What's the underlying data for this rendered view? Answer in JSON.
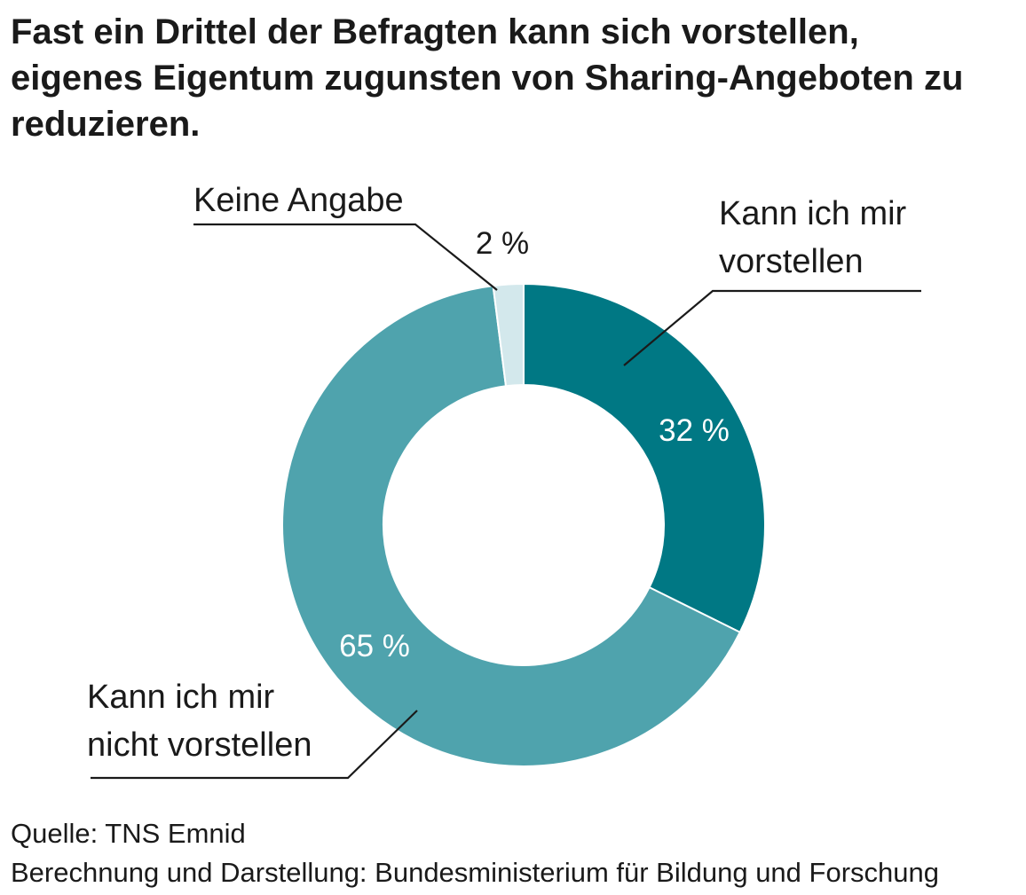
{
  "title_lines": [
    "Fast ein Drittel der Befragten kann sich vorstellen,",
    "eigenes Eigentum zugunsten von Sharing-Angeboten zu",
    "reduzieren."
  ],
  "chart_data": {
    "type": "pie",
    "variant": "donut",
    "title": "Fast ein Drittel der Befragten kann sich vorstellen, eigenes Eigentum zugunsten von Sharing-Angeboten zu reduzieren.",
    "unit": "%",
    "start_angle": "12 o'clock, clockwise",
    "slices": [
      {
        "key": "kann",
        "label_lines": [
          "Kann ich mir",
          "vorstellen"
        ],
        "value": 32,
        "value_label": "32 %",
        "color": "#007884"
      },
      {
        "key": "nicht",
        "label_lines": [
          "Kann ich mir",
          "nicht vorstellen"
        ],
        "value": 65,
        "value_label": "65 %",
        "color": "#4fa3ad"
      },
      {
        "key": "keine",
        "label_lines": [
          "Keine Angabe"
        ],
        "value": 2,
        "value_label": "2 %",
        "color": "#d3e8ec"
      }
    ]
  },
  "footer": {
    "source": "Quelle: TNS Emnid",
    "credit": "Berechnung und Darstellung: Bundesministerium für Bildung und Forschung"
  }
}
